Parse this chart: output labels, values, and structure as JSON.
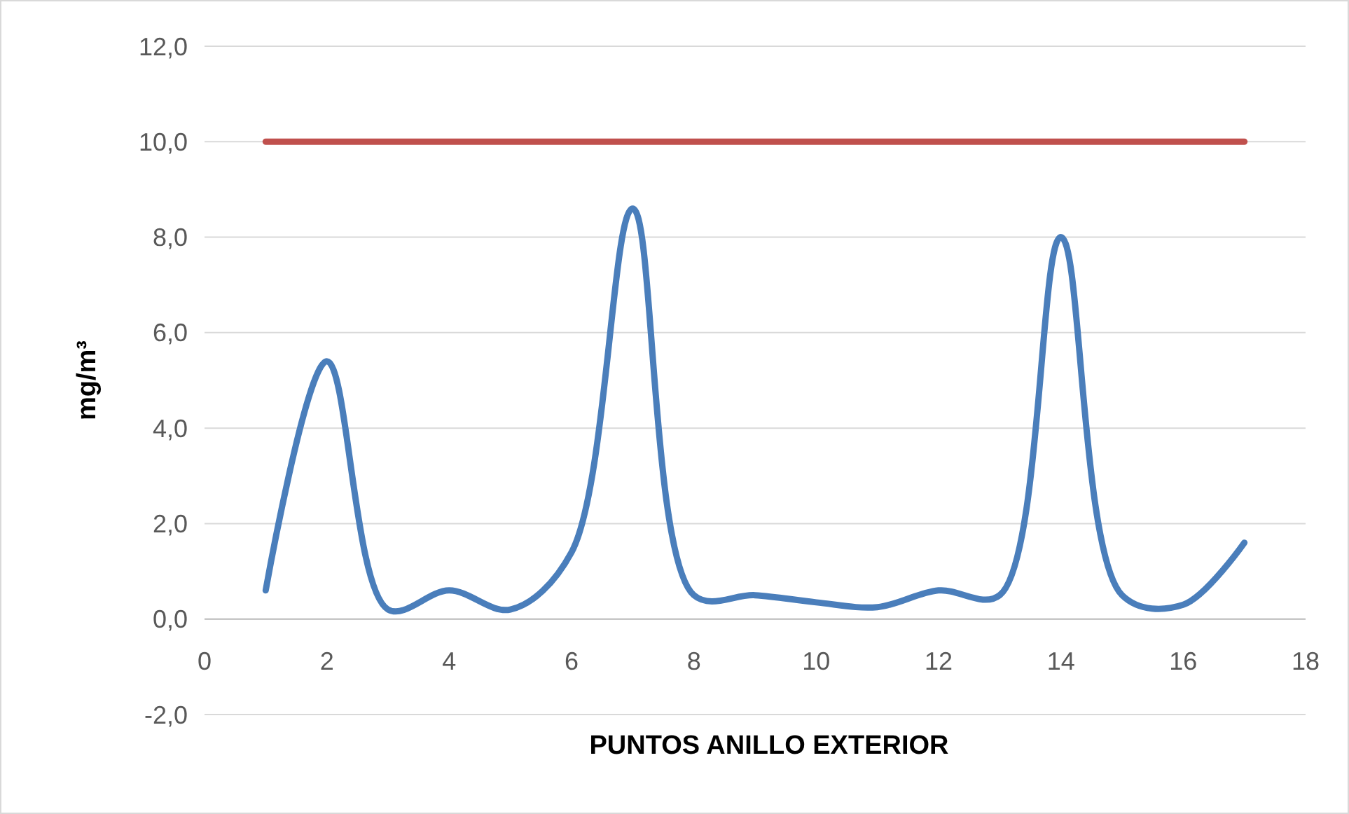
{
  "chart_data": {
    "type": "line",
    "xlabel": "PUNTOS ANILLO EXTERIOR",
    "ylabel": "mg/m³",
    "x": [
      1,
      2,
      3,
      4,
      5,
      6,
      7,
      8,
      9,
      10,
      11,
      12,
      13,
      14,
      15,
      16,
      17
    ],
    "series": [
      {
        "color": "#4a7ebb",
        "values": [
          0.6,
          5.4,
          0.2,
          0.6,
          0.2,
          1.4,
          8.6,
          0.5,
          0.5,
          0.35,
          0.25,
          0.6,
          0.5,
          8.0,
          0.5,
          0.3,
          1.6
        ]
      },
      {
        "color": "#c0504d",
        "values": [
          10,
          10,
          10,
          10,
          10,
          10,
          10,
          10,
          10,
          10,
          10,
          10,
          10,
          10,
          10,
          10,
          10
        ]
      }
    ],
    "xlim": [
      0,
      18
    ],
    "xticks": [
      0,
      2,
      4,
      6,
      8,
      10,
      12,
      14,
      16,
      18
    ],
    "ylim": [
      -2,
      12
    ],
    "yticks": [
      {
        "value": -2,
        "label": "-2,0"
      },
      {
        "value": 0,
        "label": "0,0"
      },
      {
        "value": 2,
        "label": "2,0"
      },
      {
        "value": 4,
        "label": "4,0"
      },
      {
        "value": 6,
        "label": "6,0"
      },
      {
        "value": 8,
        "label": "8,0"
      },
      {
        "value": 10,
        "label": "10,0"
      },
      {
        "value": 12,
        "label": "12,0"
      }
    ],
    "grid": "y",
    "marker": "none",
    "line_style": "solid"
  }
}
